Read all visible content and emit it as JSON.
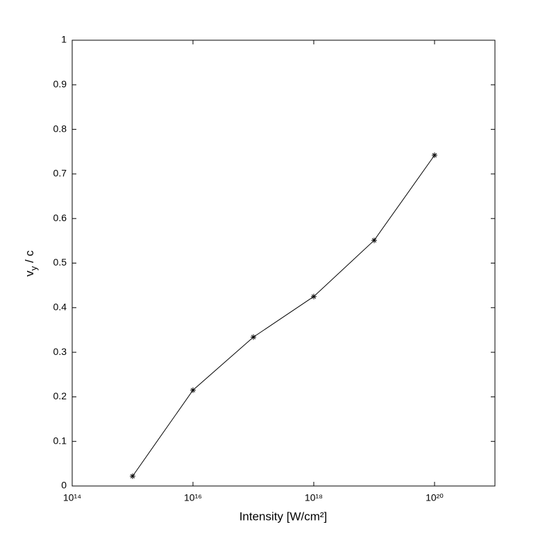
{
  "chart_data": {
    "type": "line",
    "xlabel": "Intensity [W/cm²]",
    "ylabel": "v_y / c",
    "x": [
      1000000000000000.0,
      1e+16,
      1e+17,
      1e+18,
      1e+19,
      1e+20
    ],
    "series": [
      {
        "color": "#000000",
        "marker": "asterisk",
        "values": [
          0.022,
          0.215,
          0.334,
          0.425,
          0.551,
          0.742
        ]
      }
    ],
    "xscale": "log",
    "xlim": [
      100000000000000.0,
      1e+21
    ],
    "xticks": [
      {
        "value": 100000000000000.0,
        "label": "10¹⁴"
      },
      {
        "value": 1e+16,
        "label": "10¹⁶"
      },
      {
        "value": 1e+18,
        "label": "10¹⁸"
      },
      {
        "value": 1e+20,
        "label": "10²⁰"
      }
    ],
    "ylim": [
      0,
      1
    ],
    "yticks": [
      0,
      0.1,
      0.2,
      0.3,
      0.4,
      0.5,
      0.6,
      0.7,
      0.8,
      0.9,
      1
    ],
    "grid": false
  }
}
